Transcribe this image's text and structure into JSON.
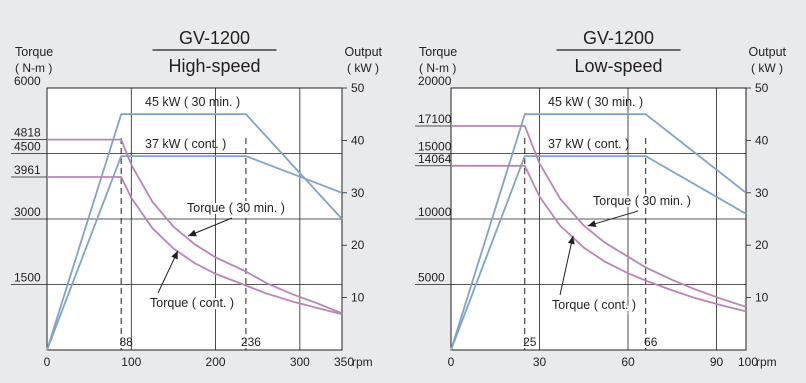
{
  "colors": {
    "background": "#e9eaeb",
    "plot_background": "#ffffff",
    "grid": "#231f20",
    "output_line": "#7fa4c9",
    "torque_line": "#b985b6",
    "text": "#231f20"
  },
  "chart_data": [
    {
      "type": "line",
      "title": "GV-1200",
      "subtitle": "High-speed",
      "ylabel_left": "Torque",
      "ylabel_left_unit": "( N-m )",
      "ylabel_right": "Output",
      "ylabel_right_unit": "( kW )",
      "x_unit": "rpm",
      "xlim": [
        0,
        350
      ],
      "ylim_left": [
        0,
        6000
      ],
      "ylim_right": [
        0,
        50
      ],
      "x_ticks": [
        0,
        100,
        200,
        300,
        350
      ],
      "x_tick_labels": [
        "0",
        "100",
        "200",
        "300",
        "350"
      ],
      "y_left_ticks": [
        1500,
        3000,
        3961,
        4500,
        4818,
        6000
      ],
      "y_left_tick_labels": [
        "1500",
        "3000",
        "3961",
        "4500",
        "4818",
        "6000"
      ],
      "y_right_ticks": [
        10,
        20,
        30,
        40,
        50
      ],
      "y_right_tick_labels": [
        "10",
        "20",
        "30",
        "40",
        "50"
      ],
      "base_speeds": [
        88,
        236
      ],
      "base_speed_labels": [
        "88",
        "236"
      ],
      "grid": true,
      "series": [
        {
          "name": "45 kW ( 30 min. )",
          "axis": "right",
          "kind": "output",
          "x": [
            0,
            88,
            236,
            350
          ],
          "y": [
            0,
            45,
            45,
            25
          ]
        },
        {
          "name": "37 kW ( cont. )",
          "axis": "right",
          "kind": "output",
          "x": [
            0,
            88,
            236,
            350
          ],
          "y": [
            0,
            37,
            37,
            30
          ]
        },
        {
          "name": "Torque ( 30 min. )",
          "axis": "left",
          "kind": "torque",
          "x": [
            0,
            88,
            100,
            125,
            150,
            175,
            200,
            236,
            260,
            290,
            320,
            350
          ],
          "y": [
            4818,
            4818,
            4241,
            3393,
            2827,
            2423,
            2120,
            1797,
            1537,
            1288,
            1074,
            841
          ]
        },
        {
          "name": "Torque ( cont. )",
          "axis": "left",
          "kind": "torque",
          "x": [
            0,
            88,
            100,
            125,
            150,
            175,
            200,
            236,
            260,
            290,
            320,
            350
          ],
          "y": [
            3961,
            3961,
            3486,
            2789,
            2324,
            1992,
            1743,
            1477,
            1299,
            1117,
            965,
            819
          ]
        }
      ],
      "annotations": [
        {
          "text": "45 kW ( 30 min. )"
        },
        {
          "text": "37 kW ( cont. )"
        },
        {
          "text": "Torque ( 30 min. )"
        },
        {
          "text": "Torque ( cont. )"
        }
      ]
    },
    {
      "type": "line",
      "title": "GV-1200",
      "subtitle": "Low-speed",
      "ylabel_left": "Torque",
      "ylabel_left_unit": "( N-m )",
      "ylabel_right": "Output",
      "ylabel_right_unit": "( kW )",
      "x_unit": "rpm",
      "xlim": [
        0,
        100
      ],
      "ylim_left": [
        0,
        20000
      ],
      "ylim_right": [
        0,
        50
      ],
      "x_ticks": [
        0,
        30,
        60,
        90,
        100
      ],
      "x_tick_labels": [
        "0",
        "30",
        "60",
        "90",
        "100"
      ],
      "y_left_ticks": [
        5000,
        10000,
        14064,
        15000,
        17100,
        20000
      ],
      "y_left_tick_labels": [
        "5000",
        "10000",
        "14064",
        "15000",
        "17100",
        "20000"
      ],
      "y_right_ticks": [
        10,
        20,
        30,
        40,
        50
      ],
      "y_right_tick_labels": [
        "10",
        "20",
        "30",
        "40",
        "50"
      ],
      "base_speeds": [
        25,
        66
      ],
      "base_speed_labels": [
        "25",
        "66"
      ],
      "grid": true,
      "series": [
        {
          "name": "45 kW ( 30 min. )",
          "axis": "right",
          "kind": "output",
          "x": [
            0,
            25,
            66,
            100
          ],
          "y": [
            0,
            45,
            45,
            30
          ]
        },
        {
          "name": "37 kW ( cont. )",
          "axis": "right",
          "kind": "output",
          "x": [
            0,
            25,
            66,
            100
          ],
          "y": [
            0,
            37,
            37,
            26
          ]
        },
        {
          "name": "Torque ( 30 min. )",
          "axis": "left",
          "kind": "torque",
          "x": [
            0,
            25,
            30,
            37,
            45,
            52,
            60,
            66,
            75,
            83,
            92,
            100
          ],
          "y": [
            17100,
            17100,
            14250,
            11550,
            9500,
            8220,
            7125,
            6300,
            5350,
            4600,
            3880,
            3300
          ]
        },
        {
          "name": "Torque ( cont. )",
          "axis": "left",
          "kind": "torque",
          "x": [
            0,
            25,
            30,
            37,
            45,
            52,
            60,
            66,
            75,
            83,
            92,
            100
          ],
          "y": [
            14064,
            14064,
            11720,
            9500,
            7813,
            6761,
            5860,
            5300,
            4550,
            3950,
            3400,
            2950
          ]
        }
      ],
      "annotations": [
        {
          "text": "45 kW ( 30 min. )"
        },
        {
          "text": "37 kW ( cont. )"
        },
        {
          "text": "Torque ( 30 min. )"
        },
        {
          "text": "Torque ( cont. )"
        }
      ]
    }
  ]
}
